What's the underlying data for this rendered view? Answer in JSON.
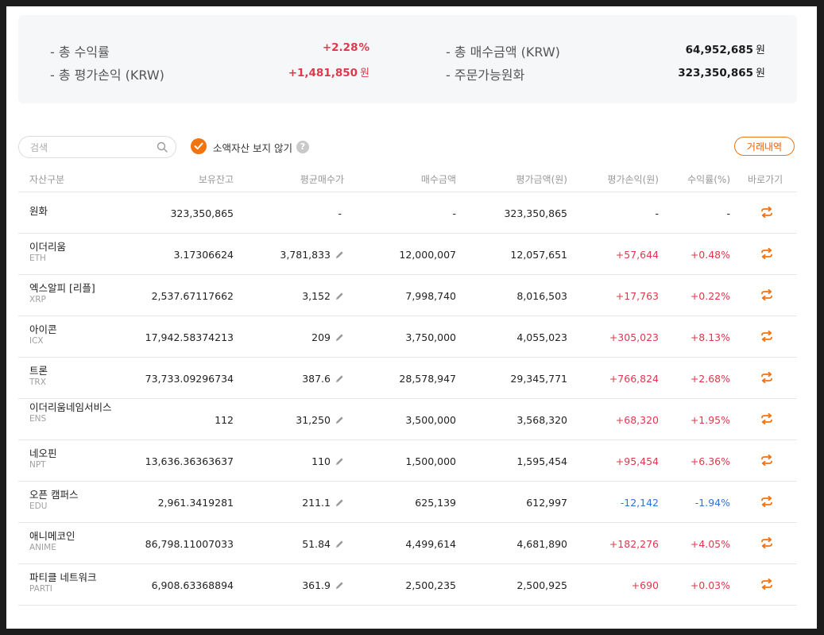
{
  "summary": {
    "total_return_label": "- 총 수익률",
    "total_return_value": "+2.28",
    "total_return_unit": "%",
    "total_pl_label": "- 총 평가손익 (KRW)",
    "total_pl_value": "+1,481,850",
    "total_pl_unit": "원",
    "total_buy_label": "- 총 매수금액 (KRW)",
    "total_buy_value": "64,952,685",
    "total_buy_unit": "원",
    "orderable_label": "- 주문가능원화",
    "orderable_value": "323,350,865",
    "orderable_unit": "원"
  },
  "search": {
    "placeholder": "검색"
  },
  "hide_small_assets": {
    "label": "소액자산 보지 않기",
    "checked": true,
    "help": "?"
  },
  "history_button": "거래내역",
  "colors": {
    "accent": "#f27410",
    "profit": "#e0384b",
    "loss": "#2f72d6"
  },
  "table": {
    "headers": [
      "자산구분",
      "보유잔고",
      "평균매수가",
      "매수금액",
      "평가금액(원)",
      "평가손익(원)",
      "수익률(%)",
      "바로가기"
    ],
    "rows": [
      {
        "name": "원화",
        "symbol": "",
        "balance": "323,350,865",
        "avg_price": "-",
        "buy_amount": "-",
        "eval_amount": "323,350,865",
        "pl": "-",
        "rate": "-",
        "trend": "none",
        "editable": false
      },
      {
        "name": "이더리움",
        "symbol": "ETH",
        "balance": "3.17306624",
        "avg_price": "3,781,833",
        "buy_amount": "12,000,007",
        "eval_amount": "12,057,651",
        "pl": "+57,644",
        "rate": "+0.48%",
        "trend": "up",
        "editable": true
      },
      {
        "name": "엑스알피 [리플]",
        "symbol": "XRP",
        "balance": "2,537.67117662",
        "avg_price": "3,152",
        "buy_amount": "7,998,740",
        "eval_amount": "8,016,503",
        "pl": "+17,763",
        "rate": "+0.22%",
        "trend": "up",
        "editable": true
      },
      {
        "name": "아이콘",
        "symbol": "ICX",
        "balance": "17,942.58374213",
        "avg_price": "209",
        "buy_amount": "3,750,000",
        "eval_amount": "4,055,023",
        "pl": "+305,023",
        "rate": "+8.13%",
        "trend": "up",
        "editable": true
      },
      {
        "name": "트론",
        "symbol": "TRX",
        "balance": "73,733.09296734",
        "avg_price": "387.6",
        "buy_amount": "28,578,947",
        "eval_amount": "29,345,771",
        "pl": "+766,824",
        "rate": "+2.68%",
        "trend": "up",
        "editable": true
      },
      {
        "name": "이더리움네임서비스",
        "symbol": "ENS",
        "balance": "112",
        "avg_price": "31,250",
        "buy_amount": "3,500,000",
        "eval_amount": "3,568,320",
        "pl": "+68,320",
        "rate": "+1.95%",
        "trend": "up",
        "editable": true
      },
      {
        "name": "네오핀",
        "symbol": "NPT",
        "balance": "13,636.36363637",
        "avg_price": "110",
        "buy_amount": "1,500,000",
        "eval_amount": "1,595,454",
        "pl": "+95,454",
        "rate": "+6.36%",
        "trend": "up",
        "editable": true
      },
      {
        "name": "오픈 캠퍼스",
        "symbol": "EDU",
        "balance": "2,961.3419281",
        "avg_price": "211.1",
        "buy_amount": "625,139",
        "eval_amount": "612,997",
        "pl": "-12,142",
        "rate": "-1.94%",
        "trend": "down",
        "editable": true
      },
      {
        "name": "애니메코인",
        "symbol": "ANIME",
        "balance": "86,798.11007033",
        "avg_price": "51.84",
        "buy_amount": "4,499,614",
        "eval_amount": "4,681,890",
        "pl": "+182,276",
        "rate": "+4.05%",
        "trend": "up",
        "editable": true
      },
      {
        "name": "파티클 네트워크",
        "symbol": "PARTI",
        "balance": "6,908.63368894",
        "avg_price": "361.9",
        "buy_amount": "2,500,235",
        "eval_amount": "2,500,925",
        "pl": "+690",
        "rate": "+0.03%",
        "trend": "up",
        "editable": true
      }
    ]
  }
}
